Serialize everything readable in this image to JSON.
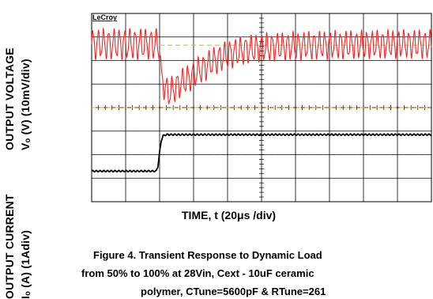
{
  "ylabels": {
    "voltage_line1": "OUTPUT VOLTAGE",
    "voltage_line2": "Vₒ (V) (10mV/div)",
    "current_line1": "OUTPUT CURRENT",
    "current_line2": "Iₒ (A)  (1Adiv)"
  },
  "scope_brand": "LeCroy",
  "xlabel": "TIME, t (20μs /div)",
  "caption": {
    "line1": "Figure 4. Transient Response to Dynamic Load",
    "line2": "from 50% to 100% at 28Vin, Cext - 10uF ceramic",
    "line3": "polymer, CTune=5600pF & RTune=261"
  },
  "colors": {
    "voltage_trace": "#ff2020",
    "current_trace": "#000000",
    "reference_marker": "#f2a900",
    "grid": "#000000"
  },
  "chart_data": {
    "type": "line",
    "x_divisions": 10,
    "y_divisions": 8,
    "x_unit": "μs",
    "x_per_div": 20,
    "xlim": [
      0,
      200
    ],
    "ylim_div": [
      -4,
      4
    ],
    "grid": true,
    "series": [
      {
        "x": [
          0,
          20,
          38,
          40,
          41,
          45,
          50,
          60,
          70,
          80,
          90,
          100,
          120,
          140,
          160,
          180,
          200
        ],
        "y": [
          2.7,
          2.7,
          2.7,
          2.6,
          1.2,
          0.6,
          0.9,
          1.4,
          1.9,
          2.25,
          2.45,
          2.55,
          2.62,
          2.66,
          2.68,
          2.7,
          2.7
        ]
      },
      {
        "x": [
          0,
          20,
          38,
          39,
          40,
          41,
          42,
          44,
          50,
          100,
          150,
          200
        ],
        "y": [
          -2.7,
          -2.7,
          -2.7,
          -2.5,
          -1.9,
          -1.4,
          -1.2,
          -1.15,
          -1.15,
          -1.15,
          -1.15,
          -1.15
        ]
      }
    ]
  }
}
